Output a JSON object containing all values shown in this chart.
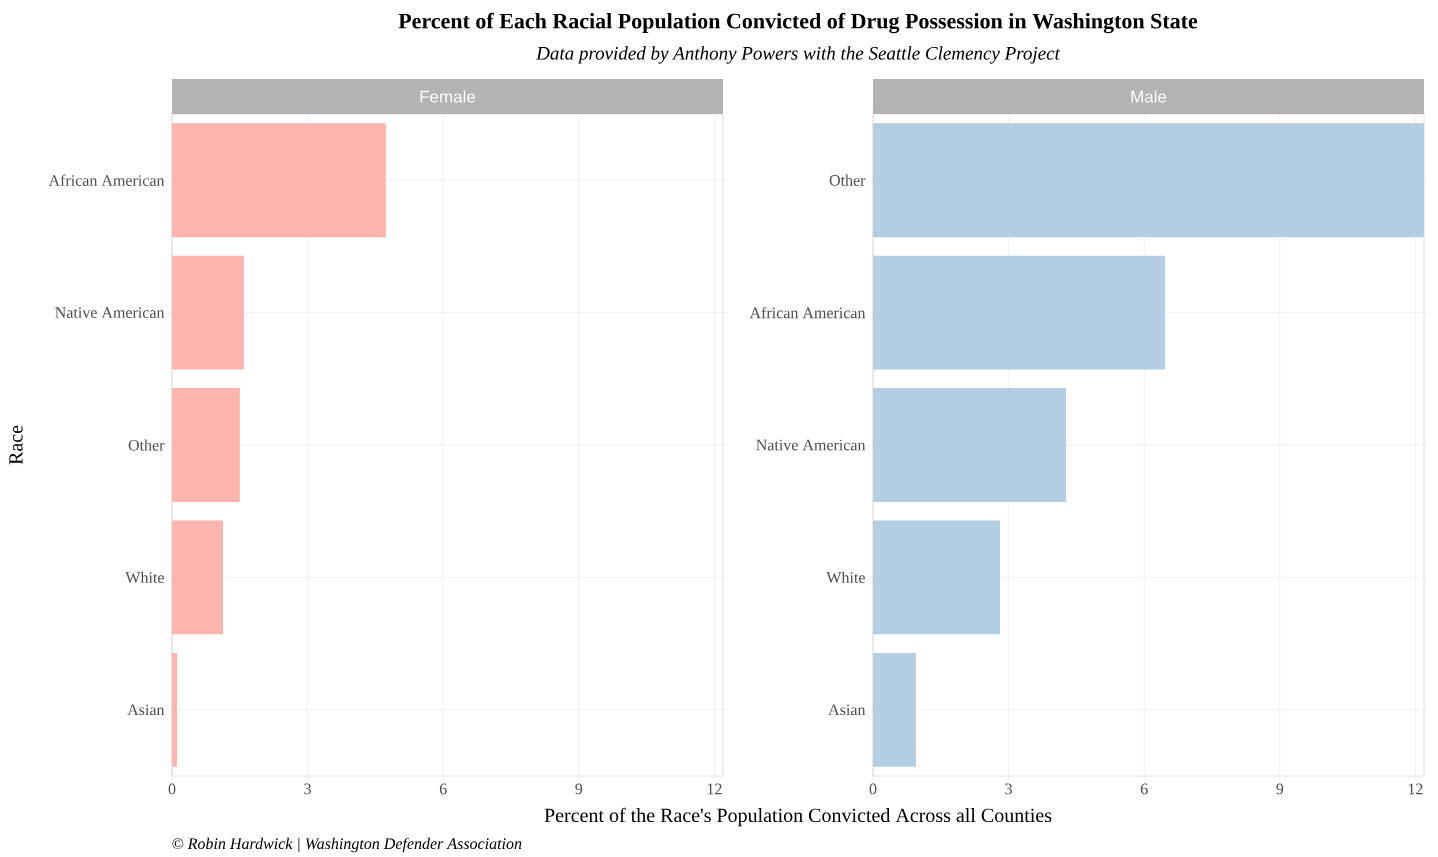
{
  "chart_data": [
    {
      "type": "bar",
      "orientation": "horizontal",
      "title": "Percent of Each Racial Population Convicted of Drug Possession in Washington State",
      "subtitle": "Data provided by Anthony Powers with the Seattle Clemency Project",
      "xlabel": "Percent of the Race's Population Convicted Across all Counties",
      "ylabel": "Race",
      "annotations": [
        "© Robin Hardwick | Washington Defender Association"
      ],
      "categories": [
        "African American",
        "Native American",
        "Other",
        "White",
        "Asian"
      ],
      "series": [
        {
          "name": "Female",
          "color": "#fbb4ae",
          "values": [
            4.73,
            1.59,
            1.5,
            1.13,
            0.11
          ]
        }
      ],
      "xlim": [
        0,
        12.19
      ],
      "xticks": [
        0,
        3,
        6,
        9,
        12
      ],
      "grid": true
    },
    {
      "type": "bar",
      "orientation": "horizontal",
      "categories": [
        "Other",
        "African American",
        "Native American",
        "White",
        "Asian"
      ],
      "series": [
        {
          "name": "Male",
          "color": "#b3cde3",
          "values": [
            12.19,
            6.46,
            4.27,
            2.81,
            0.95
          ]
        }
      ],
      "xlim": [
        0,
        12.19
      ],
      "xticks": [
        0,
        3,
        6,
        9,
        12
      ],
      "grid": true
    }
  ]
}
